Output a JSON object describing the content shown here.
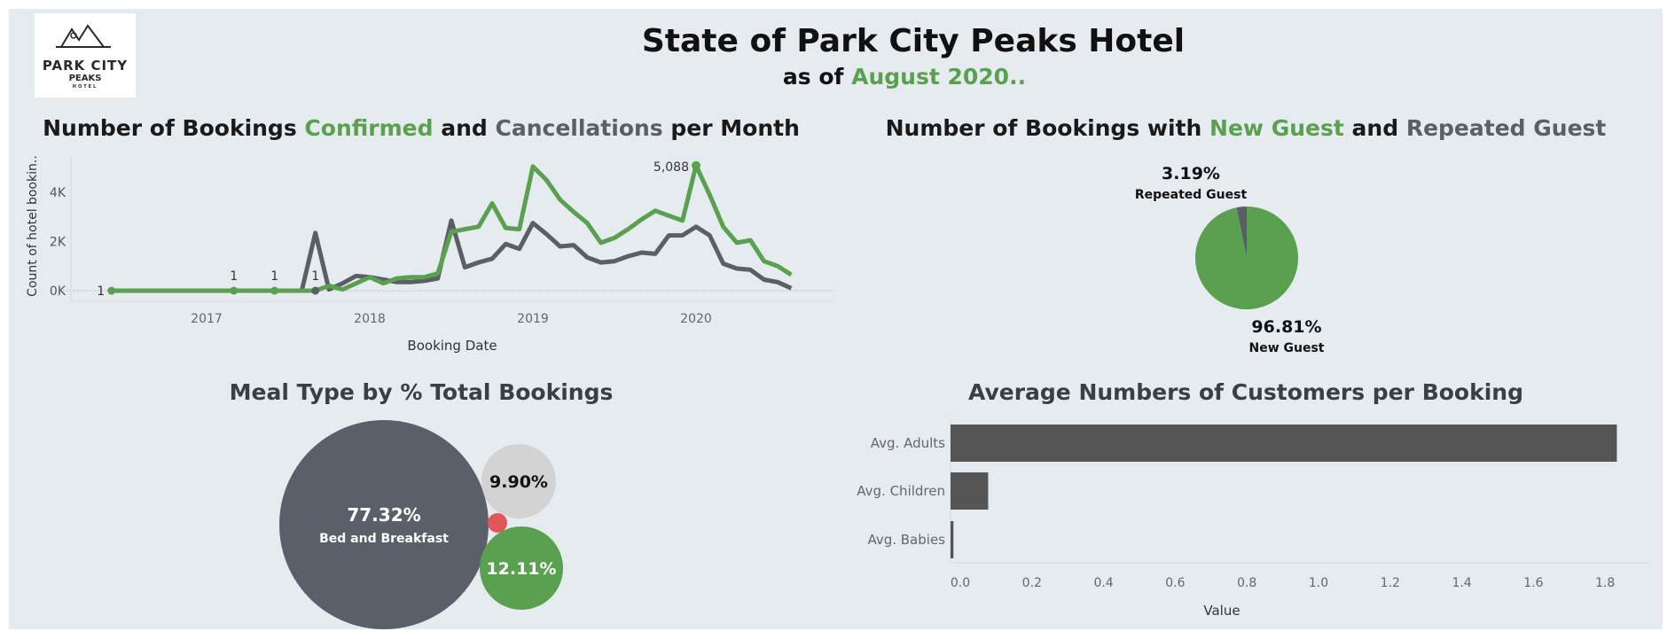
{
  "header": {
    "logo": {
      "name": "PARK CITY",
      "sub": "PEAKS",
      "tag": "HOTEL"
    },
    "title": "State of Park City Peaks Hotel",
    "subtitle_prefix": "as of ",
    "subtitle_highlight": "August 2020.."
  },
  "colors": {
    "confirmed": "#59a14f",
    "cancelled": "#5a5f66",
    "bg": "#e6ebef",
    "bar": "#555555",
    "light_bubble": "#d3d3d3",
    "red_bubble": "#e15759"
  },
  "chart_data": [
    {
      "type": "line",
      "title_parts": [
        "Number of Bookings ",
        "Confirmed",
        " and ",
        "Cancellations",
        " per Month"
      ],
      "xlabel": "Booking Date",
      "ylabel": "Count of hotel bookin..",
      "x_ticks": [
        "2017",
        "2018",
        "2019",
        "2020"
      ],
      "y_ticks": [
        "0K",
        "2K",
        "4K"
      ],
      "ylim": [
        0,
        5500
      ],
      "x_range": [
        "2016-05",
        "2020-08"
      ],
      "x": [
        "2016-06",
        "2016-07",
        "2016-08",
        "2016-09",
        "2016-10",
        "2016-11",
        "2016-12",
        "2017-01",
        "2017-02",
        "2017-03",
        "2017-04",
        "2017-05",
        "2017-06",
        "2017-07",
        "2017-08",
        "2017-09",
        "2017-10",
        "2017-11",
        "2017-12",
        "2018-01",
        "2018-02",
        "2018-03",
        "2018-04",
        "2018-05",
        "2018-06",
        "2018-07",
        "2018-08",
        "2018-09",
        "2018-10",
        "2018-11",
        "2018-12",
        "2019-01",
        "2019-02",
        "2019-03",
        "2019-04",
        "2019-05",
        "2019-06",
        "2019-07",
        "2019-08",
        "2019-09",
        "2019-10",
        "2019-11",
        "2019-12",
        "2020-01",
        "2020-02",
        "2020-03",
        "2020-04",
        "2020-05",
        "2020-06",
        "2020-07",
        "2020-08"
      ],
      "series": [
        {
          "name": "Confirmed",
          "values": [
            1,
            1,
            1,
            1,
            1,
            1,
            1,
            1,
            1,
            1,
            1,
            1,
            1,
            1,
            1,
            1,
            200,
            50,
            300,
            550,
            300,
            500,
            550,
            550,
            700,
            2400,
            2500,
            2600,
            3550,
            2550,
            2500,
            5050,
            4500,
            3700,
            3200,
            2750,
            1950,
            2150,
            2500,
            2900,
            3250,
            3050,
            2850,
            5088,
            3900,
            2600,
            1950,
            2050,
            1200,
            1000,
            650
          ]
        },
        {
          "name": "Cancellations",
          "values": [
            1,
            1,
            1,
            1,
            1,
            1,
            1,
            1,
            1,
            1,
            1,
            1,
            1,
            1,
            1,
            2350,
            50,
            300,
            600,
            550,
            450,
            350,
            350,
            400,
            500,
            2850,
            950,
            1150,
            1300,
            1900,
            1700,
            2750,
            2300,
            1800,
            1850,
            1350,
            1150,
            1200,
            1400,
            1550,
            1500,
            2250,
            2250,
            2600,
            2250,
            1100,
            900,
            850,
            450,
            350,
            100
          ]
        }
      ],
      "point_labels": [
        {
          "text": "1",
          "x": "2016-05"
        },
        {
          "text": "1",
          "x": "2017-03"
        },
        {
          "text": "1",
          "x": "2017-06"
        },
        {
          "text": "1",
          "x": "2017-09"
        },
        {
          "text": "5,088",
          "x": "2020-01"
        }
      ]
    },
    {
      "type": "pie",
      "title_parts": [
        "Number of Bookings with ",
        "New Guest",
        " and ",
        "Repeated Guest"
      ],
      "slices": [
        {
          "label": "Repeated Guest",
          "value": 3.19,
          "display": "3.19%"
        },
        {
          "label": "New Guest",
          "value": 96.81,
          "display": "96.81%"
        }
      ]
    },
    {
      "type": "bubble",
      "title": "Meal Type by % Total Bookings",
      "bubbles": [
        {
          "label": "Bed and Breakfast",
          "value": 77.32,
          "display": "77.32%"
        },
        {
          "label": "",
          "value": 9.9,
          "display": "9.90%"
        },
        {
          "label": "",
          "value": 12.11,
          "display": "12.11%"
        },
        {
          "label": "",
          "value": 0.67,
          "display": ""
        }
      ]
    },
    {
      "type": "bar",
      "orientation": "horizontal",
      "title": "Average Numbers of Customers per Booking",
      "categories": [
        "Avg. Adults",
        "Avg. Children",
        "Avg. Babies"
      ],
      "values": [
        1.86,
        0.105,
        0.008
      ],
      "xlabel": "Value",
      "x_ticks": [
        "0.0",
        "0.2",
        "0.4",
        "0.6",
        "0.8",
        "1.0",
        "1.2",
        "1.4",
        "1.6",
        "1.8"
      ],
      "xlim": [
        0,
        1.95
      ]
    }
  ]
}
